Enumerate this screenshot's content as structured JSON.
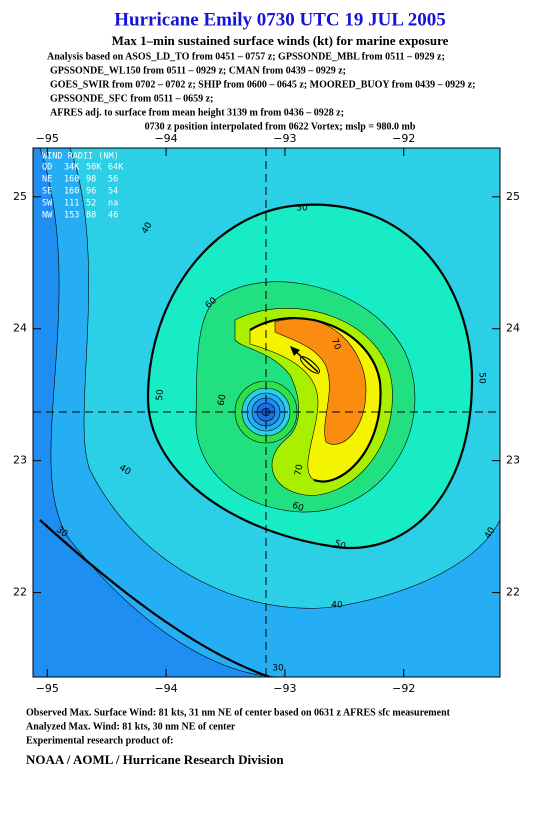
{
  "title": "Hurricane Emily 0730 UTC 19 JUL 2005",
  "subtitle": "Max 1–min sustained surface winds (kt) for marine exposure",
  "analysis_lines": [
    "Analysis based on  ASOS_LD_TO from 0451 – 0757 z;  GPSSONDE_MBL from 0511 – 0929 z;",
    "GPSSONDE_WL150 from 0511 – 0929 z;  CMAN from 0439 – 0929 z;",
    "GOES_SWIR from 0702 – 0702 z;  SHIP from 0600 – 0645 z;  MOORED_BUOY from 0439 – 0929 z;",
    "GPSSONDE_SFC from 0511 – 0659 z;",
    "AFRES adj. to surface from mean height 3139 m from 0436 – 0928 z;",
    "0730 z position interpolated from 0622 Vortex; mslp = 980.0 mb"
  ],
  "map": {
    "xlim": [
      -95.12,
      -91.19
    ],
    "ylim": [
      21.36,
      25.37
    ],
    "xticks": [
      {
        "value": -95,
        "label": "−95"
      },
      {
        "value": -94,
        "label": "−94"
      },
      {
        "value": -93,
        "label": "−93"
      },
      {
        "value": -92,
        "label": "−92"
      }
    ],
    "yticks": [
      22,
      23,
      24,
      25
    ],
    "contour_labels": [
      50,
      40,
      60,
      70,
      50,
      60,
      50,
      70,
      60,
      50,
      40,
      40,
      30,
      40,
      30
    ]
  },
  "wind_radii": {
    "title": "WIND RADII (NM)",
    "header": [
      "QD",
      "34K",
      "50K",
      "64K"
    ],
    "rows": [
      [
        "NE",
        "160",
        "98",
        "56"
      ],
      [
        "SE",
        "160",
        "96",
        "54"
      ],
      [
        "SW",
        "111",
        "52",
        "na"
      ],
      [
        "NW",
        "153",
        "88",
        "46"
      ]
    ]
  },
  "footer": [
    "Observed Max. Surface Wind: 81 kts, 31 nm NE of center based on 0631 z AFRES sfc measurement",
    "Analyzed Max. Wind: 81 kts, 30 nm NE of center",
    "Experimental research product of:",
    "NOAA / AOML / Hurricane Research Division"
  ]
}
